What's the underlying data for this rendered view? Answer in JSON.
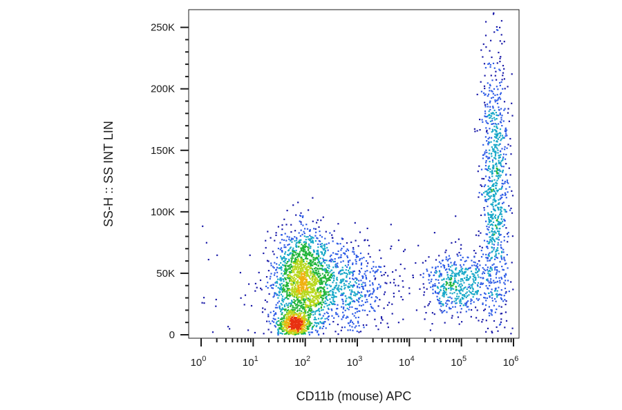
{
  "chart_data": {
    "type": "scatter",
    "title": "",
    "xlabel": "CD11b (mouse) APC",
    "ylabel": "SS-H :: SS INT LIN",
    "x_scale": "log",
    "xlim": [
      1,
      1000000
    ],
    "ylim": [
      0,
      262144
    ],
    "x_ticks": [
      {
        "value": 1,
        "base": "10",
        "exp": "0"
      },
      {
        "value": 10,
        "base": "10",
        "exp": "1"
      },
      {
        "value": 100,
        "base": "10",
        "exp": "2"
      },
      {
        "value": 1000,
        "base": "10",
        "exp": "3"
      },
      {
        "value": 10000,
        "base": "10",
        "exp": "4"
      },
      {
        "value": 100000,
        "base": "10",
        "exp": "5"
      },
      {
        "value": 1000000,
        "base": "10",
        "exp": "6"
      }
    ],
    "y_ticks": [
      {
        "value": 0,
        "label": "0"
      },
      {
        "value": 50000,
        "label": "50K"
      },
      {
        "value": 100000,
        "label": "100K"
      },
      {
        "value": 150000,
        "label": "150K"
      },
      {
        "value": 200000,
        "label": "200K"
      },
      {
        "value": 250000,
        "label": "250K"
      }
    ],
    "color_scale": [
      "#1a1aa8",
      "#2d5be6",
      "#18a8c8",
      "#22b53a",
      "#b8d81e",
      "#f0b010",
      "#e83010"
    ],
    "grid": false,
    "legend": "none",
    "populations": [
      {
        "x_center": 90,
        "x_spread_decades": 0.28,
        "y_center": 45000,
        "y_spread": 20000,
        "points": 1500
      },
      {
        "x_center": 60,
        "x_spread_decades": 0.18,
        "y_center": 7000,
        "y_spread": 6000,
        "points": 500
      },
      {
        "x_center": 500,
        "x_spread_decades": 0.5,
        "y_center": 40000,
        "y_spread": 18000,
        "points": 650
      },
      {
        "x_center": 80000,
        "x_spread_decades": 0.3,
        "y_center": 42000,
        "y_spread": 13000,
        "points": 500
      },
      {
        "x_center": 450000,
        "x_spread_decades": 0.14,
        "y_center": 120000,
        "y_spread": 55000,
        "points": 900
      },
      {
        "x_center": 300,
        "x_spread_decades": 1.6,
        "y_center": 30000,
        "y_spread": 25000,
        "points": 160
      }
    ]
  }
}
